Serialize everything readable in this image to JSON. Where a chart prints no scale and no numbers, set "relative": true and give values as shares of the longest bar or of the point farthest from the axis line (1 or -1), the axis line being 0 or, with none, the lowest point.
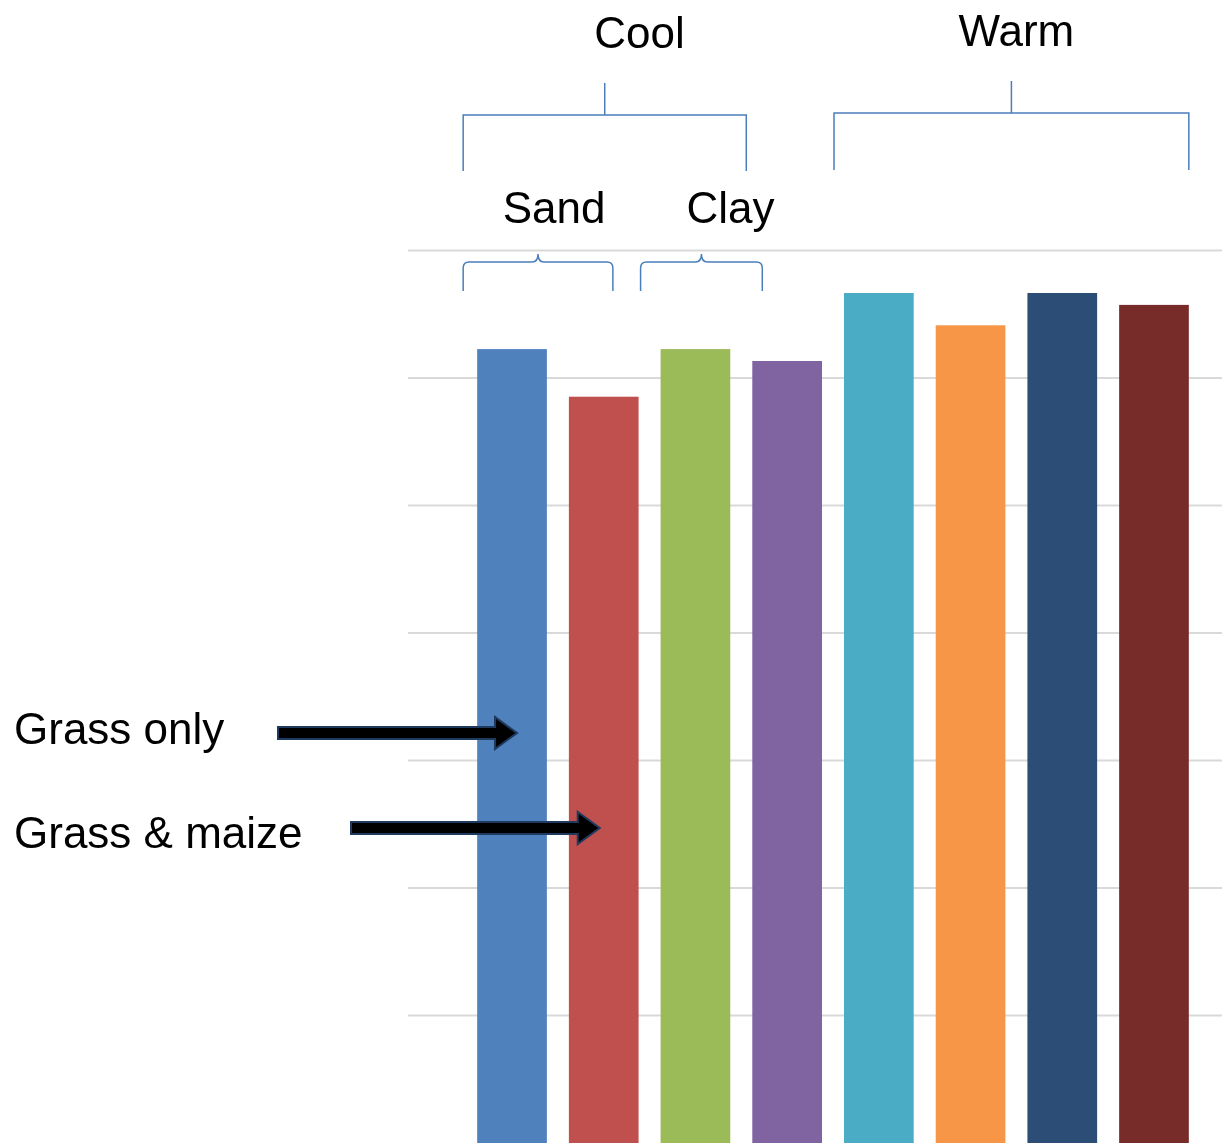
{
  "chart_data": {
    "type": "bar",
    "relative": true,
    "grid": true,
    "categories": [
      null,
      null,
      null,
      null,
      null,
      null,
      null,
      null
    ],
    "values": [
      0.934,
      0.878,
      0.934,
      0.92,
      1,
      0.962,
      1,
      0.986
    ],
    "colors": [
      "#4f81bd",
      "#c0504d",
      "#9bbb59",
      "#8064a2",
      "#4bacc6",
      "#f79646",
      "#2c4d75",
      "#772c2a"
    ],
    "annotations": [
      "Cool",
      "Warm",
      "Sand",
      "Clay",
      "Grass  only",
      "Grass & maize"
    ]
  }
}
